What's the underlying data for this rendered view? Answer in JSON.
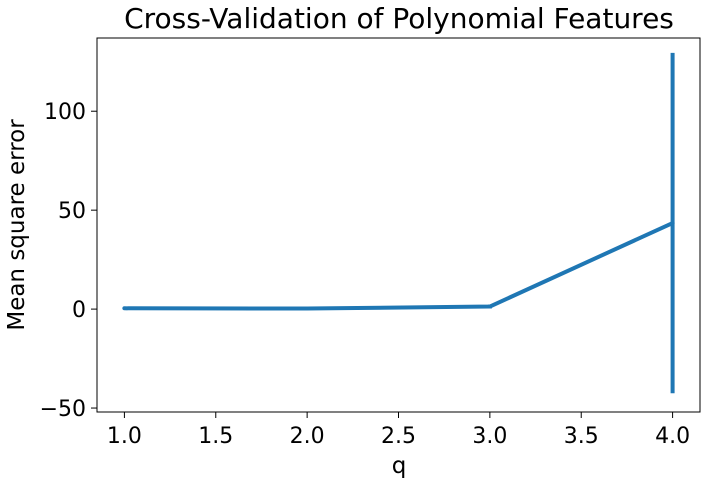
{
  "chart_data": {
    "type": "line",
    "title": "Cross-Validation of Polynomial Features",
    "xlabel": "q",
    "ylabel": "Mean square error",
    "xlim": [
      0.85,
      4.15
    ],
    "ylim": [
      -52,
      137
    ],
    "xticks": [
      1.0,
      1.5,
      2.0,
      2.5,
      3.0,
      3.5,
      4.0
    ],
    "xtick_labels": [
      "1.0",
      "1.5",
      "2.0",
      "2.5",
      "3.0",
      "3.5",
      "4.0"
    ],
    "yticks": [
      -50,
      0,
      50,
      100
    ],
    "ytick_labels": [
      "−50",
      "0",
      "50",
      "100"
    ],
    "grid": false,
    "series": [
      {
        "color": "#1f77b4",
        "x": [
          1,
          2,
          3,
          4
        ],
        "y": [
          0.4,
          0.3,
          1.3,
          43.5
        ],
        "yerr": [
          0.3,
          0.3,
          1.0,
          86.0
        ]
      }
    ]
  }
}
